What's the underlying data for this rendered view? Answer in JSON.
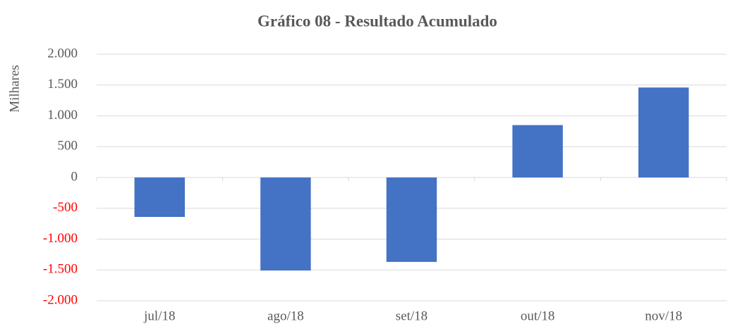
{
  "chart_data": {
    "type": "bar",
    "title": "Gráfico 08 - Resultado Acumulado",
    "y_label": "Milhares",
    "categories": [
      "jul/18",
      "ago/18",
      "set/18",
      "out/18",
      "nov/18"
    ],
    "values": [
      -640,
      -1510,
      -1370,
      850,
      1460
    ],
    "color": "#4472c4",
    "negative_tick_color": "#ff0000",
    "ylim": [
      -2000,
      2000
    ],
    "yticks": [
      {
        "value": -2000,
        "label": "-2.000"
      },
      {
        "value": -1500,
        "label": "-1.500"
      },
      {
        "value": -1000,
        "label": "-1.000"
      },
      -500,
      0,
      500,
      {
        "value": 1000,
        "label": "1.000"
      },
      {
        "value": 1500,
        "label": "1.500"
      },
      {
        "value": 2000,
        "label": "2.000"
      }
    ],
    "grid": true
  }
}
